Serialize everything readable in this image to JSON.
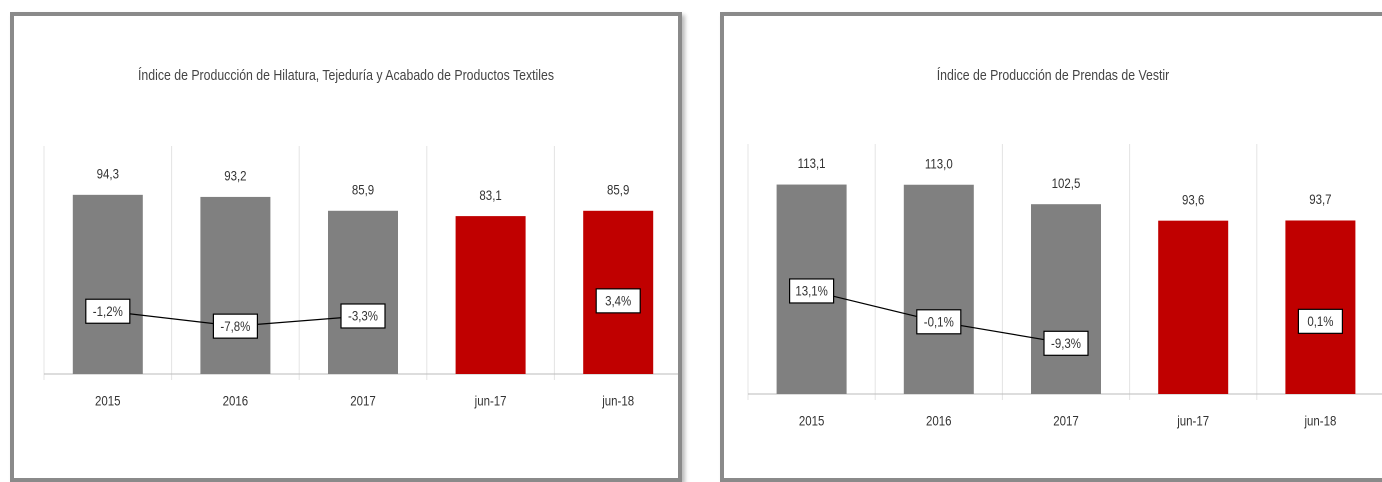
{
  "chart_data": [
    {
      "type": "bar",
      "title": "Índice de Producción de Hilatura, Tejeduría y Acabado de Productos Textiles",
      "categories": [
        "2015",
        "2016",
        "2017",
        "jun-17",
        "jun-18"
      ],
      "values": [
        94.3,
        93.2,
        85.9,
        83.1,
        85.9
      ],
      "value_labels": [
        "94,3",
        "93,2",
        "85,9",
        "83,1",
        "85,9"
      ],
      "colors": [
        "#808080",
        "#808080",
        "#808080",
        "#c00000",
        "#c00000"
      ],
      "ylim": [
        0,
        120
      ],
      "change": {
        "axis": "y2",
        "color": "#000000",
        "values": [
          -1.2,
          -7.8,
          -3.3,
          null,
          3.4
        ],
        "value_labels": [
          "-1,2%",
          "-7,8%",
          "-3,3%",
          null,
          "3,4%"
        ]
      },
      "y2lim": [
        -29,
        72
      ]
    },
    {
      "type": "bar",
      "title": "Índice de Producción de Prendas de Vestir",
      "categories": [
        "2015",
        "2016",
        "2017",
        "jun-17",
        "jun-18"
      ],
      "values": [
        113.1,
        113.0,
        102.5,
        93.6,
        93.7
      ],
      "value_labels": [
        "113,1",
        "113,0",
        "102,5",
        "93,6",
        "93,7"
      ],
      "colors": [
        "#808080",
        "#808080",
        "#808080",
        "#c00000",
        "#c00000"
      ],
      "ylim": [
        0,
        135
      ],
      "change": {
        "axis": "y2",
        "color": "#000000",
        "values": [
          13.1,
          -0.1,
          -9.3,
          null,
          0.1
        ],
        "value_labels": [
          "13,1%",
          "-0,1%",
          "-9,3%",
          null,
          "0,1%"
        ]
      },
      "y2lim": [
        -31,
        76
      ]
    }
  ]
}
